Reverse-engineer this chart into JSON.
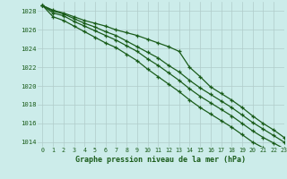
{
  "title": "Graphe pression niveau de la mer (hPa)",
  "background_color": "#ccecea",
  "plot_bg_color": "#ccecea",
  "grid_color": "#b0ccca",
  "line_color": "#1a5c1a",
  "xlim": [
    -0.5,
    23
  ],
  "ylim": [
    1013.5,
    1029.0
  ],
  "yticks": [
    1014,
    1016,
    1018,
    1020,
    1022,
    1024,
    1026,
    1028
  ],
  "xticks": [
    0,
    1,
    2,
    3,
    4,
    5,
    6,
    7,
    8,
    9,
    10,
    11,
    12,
    13,
    14,
    15,
    16,
    17,
    18,
    19,
    20,
    21,
    22,
    23
  ],
  "series": [
    [
      1028.6,
      1028.1,
      1027.8,
      1027.4,
      1027.0,
      1026.7,
      1026.4,
      1026.0,
      1025.7,
      1025.4,
      1025.0,
      1024.6,
      1024.2,
      1023.7,
      1022.0,
      1021.0,
      1019.9,
      1019.2,
      1018.5,
      1017.7,
      1016.8,
      1016.0,
      1015.3,
      1014.5
    ],
    [
      1028.6,
      1028.0,
      1027.7,
      1027.2,
      1026.7,
      1026.3,
      1025.8,
      1025.4,
      1024.8,
      1024.2,
      1023.6,
      1023.0,
      1022.2,
      1021.5,
      1020.6,
      1019.8,
      1019.1,
      1018.4,
      1017.7,
      1016.9,
      1016.1,
      1015.4,
      1014.7,
      1014.0
    ],
    [
      1028.6,
      1027.8,
      1027.5,
      1026.9,
      1026.4,
      1025.9,
      1025.4,
      1024.9,
      1024.3,
      1023.7,
      1022.9,
      1022.2,
      1021.4,
      1020.6,
      1019.7,
      1018.9,
      1018.2,
      1017.5,
      1016.8,
      1016.0,
      1015.2,
      1014.5,
      1013.9,
      1013.3
    ],
    [
      1028.6,
      1027.4,
      1027.0,
      1026.4,
      1025.8,
      1025.2,
      1024.6,
      1024.1,
      1023.4,
      1022.7,
      1021.8,
      1021.0,
      1020.2,
      1019.4,
      1018.5,
      1017.7,
      1017.0,
      1016.3,
      1015.6,
      1014.8,
      1014.0,
      1013.4,
      1013.0,
      1012.8
    ]
  ]
}
